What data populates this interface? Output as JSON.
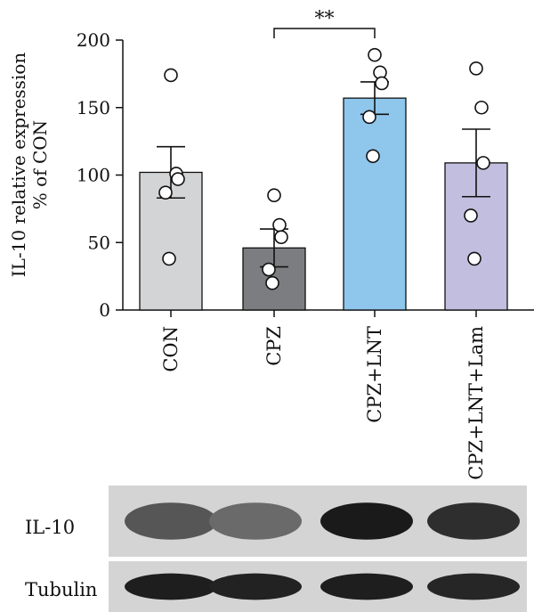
{
  "chart_data": {
    "type": "bar",
    "ylabel_line1": "IL-10 relative expression",
    "ylabel_line2": "% of CON",
    "ylim": [
      0,
      200
    ],
    "yticks": [
      0,
      50,
      100,
      150,
      200
    ],
    "categories": [
      "CON",
      "CPZ",
      "CPZ+LNT",
      "CPZ+LNT+Lam"
    ],
    "means": [
      102,
      46,
      157,
      109
    ],
    "sem": [
      19,
      14,
      12,
      25
    ],
    "points": [
      [
        174,
        101,
        97,
        87,
        38
      ],
      [
        85,
        63,
        54,
        30,
        20
      ],
      [
        189,
        176,
        168,
        143,
        114
      ],
      [
        179,
        150,
        109,
        70,
        38
      ]
    ],
    "bar_colors": [
      "#d2d4d6",
      "#7c7d80",
      "#8ec6ec",
      "#c2bedf"
    ],
    "significance": {
      "from": 1,
      "to": 2,
      "label": "**"
    },
    "grid": false
  },
  "blot": {
    "rows": [
      {
        "label": "IL-10",
        "band_intensity": [
          0.62,
          0.52,
          0.92,
          0.82
        ]
      },
      {
        "label": "Tubulin",
        "band_intensity": [
          0.9,
          0.88,
          0.9,
          0.86
        ]
      }
    ]
  }
}
